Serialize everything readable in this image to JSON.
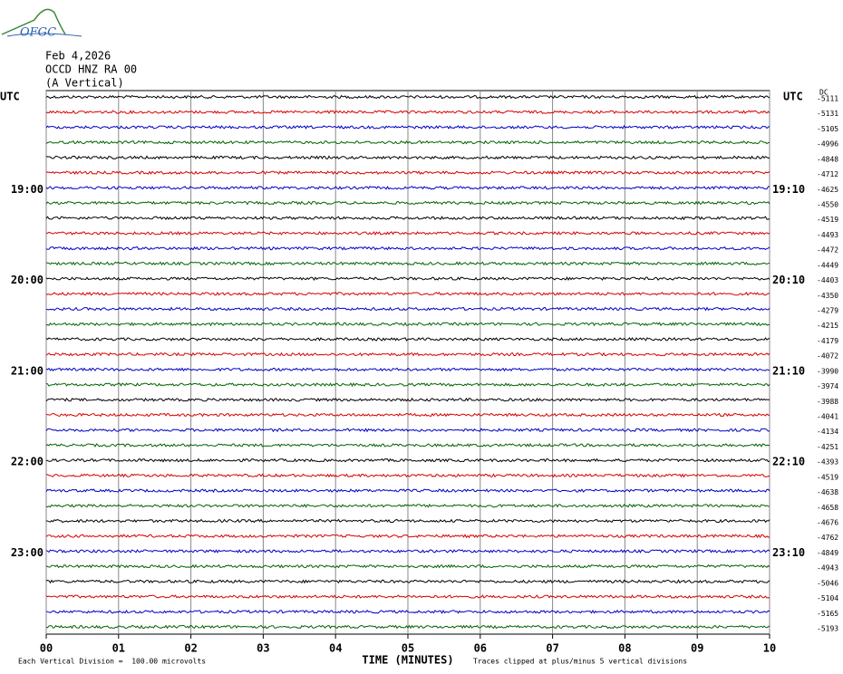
{
  "logo": "OFGC",
  "header": {
    "date": "Feb 4,2026",
    "station": "OCCD HNZ RA 00",
    "component": "(A Vertical)"
  },
  "chart_data": {
    "type": "helicorder",
    "left_axis_label": "UTC",
    "right_axis_label": "UTC",
    "offset_label": "DC",
    "left_time_labels": [
      "19:00",
      "20:00",
      "21:00",
      "22:00",
      "23:00"
    ],
    "right_time_labels": [
      "19:10",
      "20:10",
      "21:10",
      "22:10",
      "23:10"
    ],
    "dc_offsets": [
      -5111,
      -5131,
      -5105,
      -4996,
      -4848,
      -4712,
      -4625,
      -4550,
      -4519,
      -4493,
      -4472,
      -4449,
      -4403,
      -4350,
      -4279,
      -4215,
      -4179,
      -4072,
      -3990,
      -3974,
      -3988,
      -4041,
      -4134,
      -4251,
      -4393,
      -4519,
      -4638,
      -4658,
      -4676,
      -4762,
      -4849,
      -4943,
      -5046,
      -5104,
      -5165,
      -5193
    ],
    "colors": [
      "#000000",
      "#d80000",
      "#0000c8",
      "#006400"
    ],
    "xlabel": "TIME (MINUTES)",
    "xlim": [
      0,
      10
    ],
    "xticks": [
      {
        "value": 0,
        "label": "00"
      },
      {
        "value": 1,
        "label": "01"
      },
      {
        "value": 2,
        "label": "02"
      },
      {
        "value": 3,
        "label": "03"
      },
      {
        "value": 4,
        "label": "04"
      },
      {
        "value": 5,
        "label": "05"
      },
      {
        "value": 6,
        "label": "06"
      },
      {
        "value": 7,
        "label": "07"
      },
      {
        "value": 8,
        "label": "08"
      },
      {
        "value": 9,
        "label": "09"
      },
      {
        "value": 10,
        "label": "10"
      }
    ],
    "footer": {
      "scale": "Each Vertical Division =  100.00 microvolts",
      "clip": "Traces clipped at plus/minus 5 vertical divisions"
    }
  }
}
